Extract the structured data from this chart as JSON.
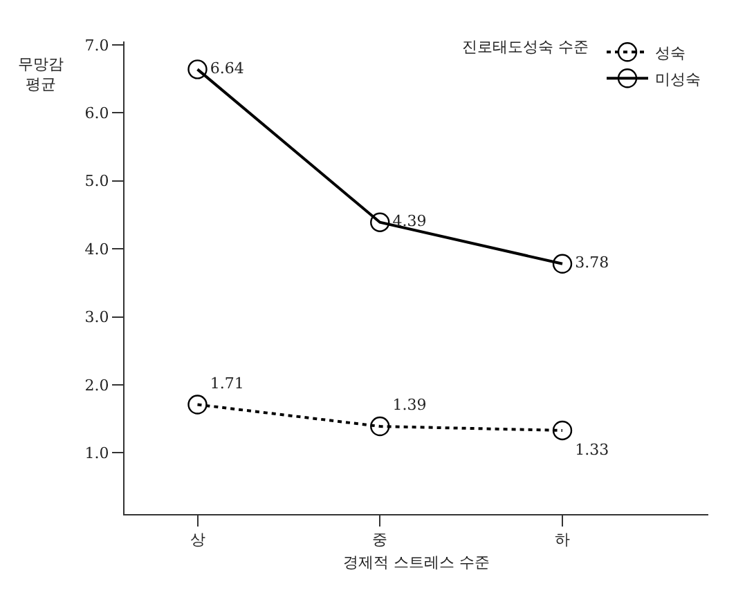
{
  "chart_data": {
    "type": "line",
    "ylabel": "무망감 평균",
    "xlabel": "경제적 스트레스 수준",
    "legend_title": "진로태도성숙 수준",
    "categories": [
      "상",
      "중",
      "하"
    ],
    "series": [
      {
        "name": "성숙",
        "color": "#000000",
        "line_style": "dotted",
        "values": [
          1.71,
          1.39,
          1.33
        ]
      },
      {
        "name": "미성숙",
        "color": "#000000",
        "line_style": "solid",
        "values": [
          6.64,
          4.39,
          3.78
        ]
      }
    ],
    "ylim": [
      0.1,
      7.05
    ],
    "yticks": [
      {
        "value": 1,
        "label": "1.0"
      },
      {
        "value": 2,
        "label": "2.0"
      },
      {
        "value": 3,
        "label": "3.0"
      },
      {
        "value": 4,
        "label": "4.0"
      },
      {
        "value": 5,
        "label": "5.0"
      },
      {
        "value": 6,
        "label": "6.0"
      },
      {
        "value": 7,
        "label": "7.0"
      }
    ],
    "grid": false,
    "legend": "top right",
    "marker": "circle",
    "data_labels": true
  }
}
